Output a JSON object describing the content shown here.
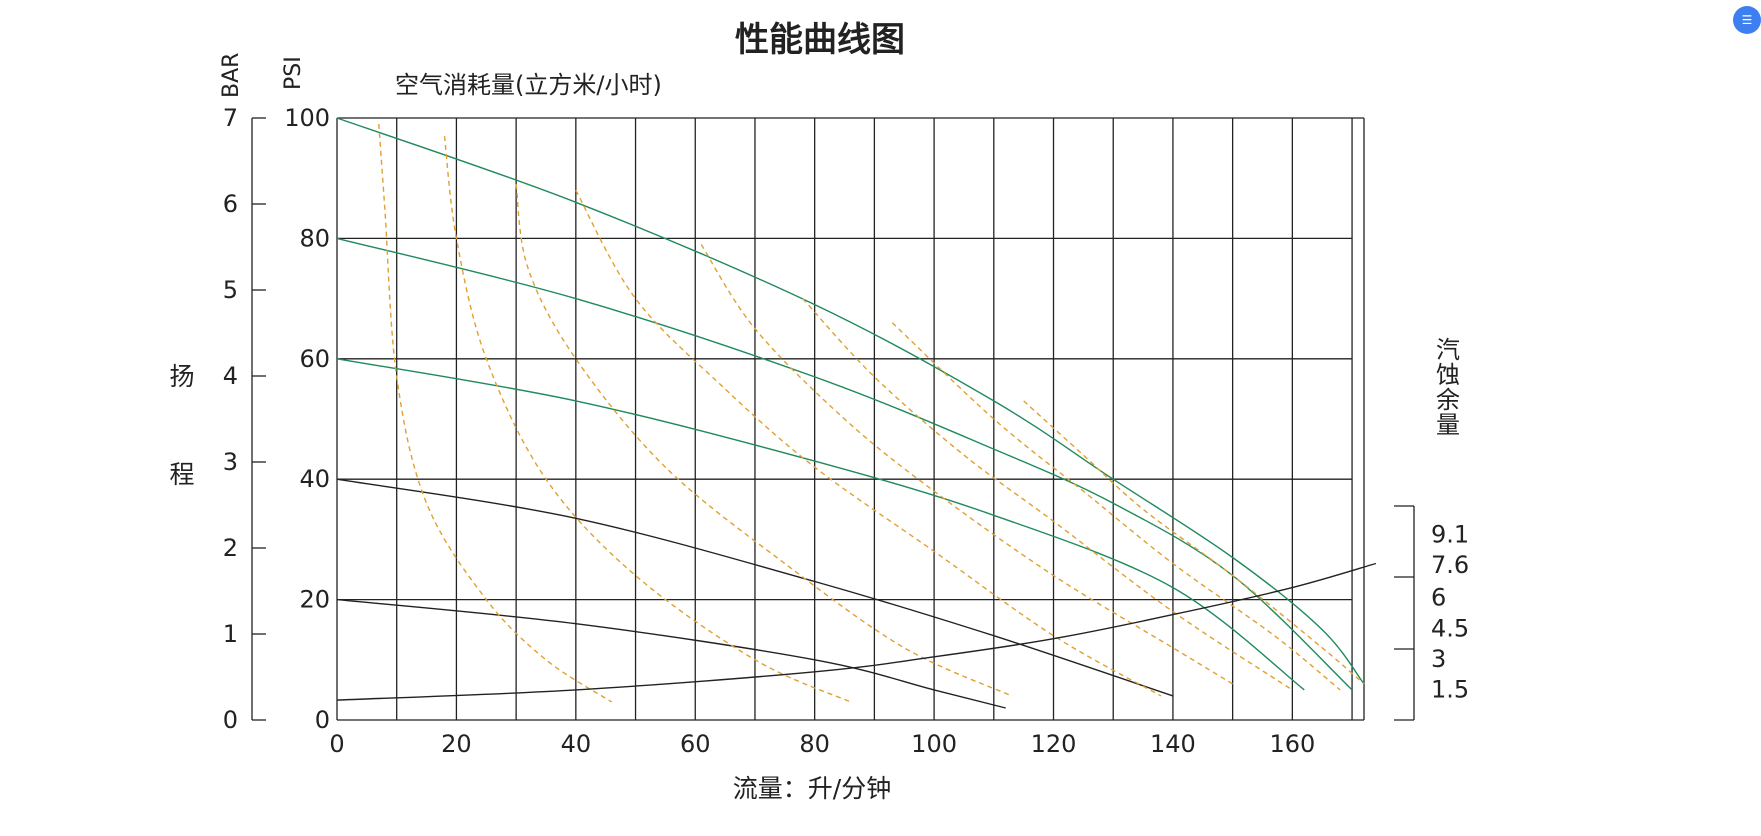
{
  "chart_data": {
    "type": "line",
    "title": "性能曲线图",
    "xlabel": "流量：升/分钟",
    "xlim": [
      0,
      172
    ],
    "x_ticks": [
      0,
      20,
      40,
      60,
      80,
      100,
      120,
      140,
      160
    ],
    "ylim": [
      0,
      100
    ],
    "y_axis_psi": {
      "label": "PSI",
      "ticks": [
        0,
        20,
        40,
        60,
        80,
        100
      ]
    },
    "y_axis_bar": {
      "label": "BAR",
      "ticks": [
        0,
        1,
        2,
        3,
        4,
        5,
        6,
        7
      ]
    },
    "head_label_top": "扬",
    "head_label_bottom": "程",
    "air_consumption_label": "空气消耗量(立方米/小时)",
    "npsh_axis": {
      "label": "汽蚀余量",
      "range": [
        0,
        10.5
      ],
      "ticks": [
        1.5,
        3,
        4.5,
        6,
        7.6,
        9.1
      ]
    },
    "grid": true,
    "series": [
      {
        "group": "pressure",
        "color": "#1f8a5c",
        "x": [
          0,
          40,
          80,
          110,
          130,
          150,
          165,
          172
        ],
        "y": [
          100,
          86,
          69,
          53,
          40,
          27,
          15,
          6
        ]
      },
      {
        "group": "pressure",
        "color": "#1f8a5c",
        "x": [
          0,
          40,
          80,
          110,
          130,
          150,
          170
        ],
        "y": [
          80,
          70,
          57,
          45,
          36,
          24,
          5
        ]
      },
      {
        "group": "pressure",
        "color": "#1f8a5c",
        "x": [
          0,
          40,
          80,
          110,
          140,
          162
        ],
        "y": [
          60,
          53,
          43,
          34,
          22,
          5
        ]
      },
      {
        "group": "pressure",
        "color": "#222222",
        "x": [
          0,
          40,
          80,
          110,
          140
        ],
        "y": [
          40,
          33.5,
          23,
          14,
          4
        ]
      },
      {
        "group": "pressure",
        "color": "#222222",
        "x": [
          0,
          40,
          80,
          100,
          112
        ],
        "y": [
          20,
          16,
          10,
          5,
          2
        ]
      },
      {
        "group": "air",
        "color": "#e0a030",
        "x": [
          7,
          8,
          10,
          15,
          25,
          35,
          46
        ],
        "y": [
          99,
          85,
          57,
          36,
          20,
          10,
          3
        ]
      },
      {
        "group": "air",
        "color": "#e0a030",
        "x": [
          18,
          20,
          25,
          35,
          50,
          70,
          86
        ],
        "y": [
          97,
          80,
          60,
          40,
          24,
          10,
          3
        ]
      },
      {
        "group": "air",
        "color": "#e0a030",
        "x": [
          30,
          32,
          40,
          55,
          75,
          95,
          113
        ],
        "y": [
          89,
          75,
          60,
          42,
          26,
          12,
          4
        ]
      },
      {
        "group": "air",
        "color": "#e0a030",
        "x": [
          40,
          50,
          65,
          80,
          100,
          120,
          138
        ],
        "y": [
          88,
          70,
          55,
          42,
          28,
          14,
          4
        ]
      },
      {
        "group": "air",
        "color": "#e0a030",
        "x": [
          61,
          70,
          85,
          100,
          120,
          140,
          150
        ],
        "y": [
          79,
          65,
          50,
          38,
          24,
          12,
          6
        ]
      },
      {
        "group": "air",
        "color": "#e0a030",
        "x": [
          78,
          90,
          105,
          120,
          140,
          160
        ],
        "y": [
          70,
          57,
          44,
          33,
          18,
          5
        ]
      },
      {
        "group": "air",
        "color": "#e0a030",
        "x": [
          93,
          110,
          125,
          140,
          157,
          168
        ],
        "y": [
          66,
          50,
          38,
          26,
          14,
          5
        ]
      },
      {
        "group": "air",
        "color": "#e0a030",
        "x": [
          115,
          125,
          135,
          150,
          165,
          172
        ],
        "y": [
          53,
          44,
          35,
          24,
          12,
          6
        ]
      },
      {
        "group": "npsh",
        "color": "#222222",
        "x": [
          0,
          40,
          80,
          100,
          120,
          140,
          160,
          174
        ],
        "y": [
          3.3,
          5,
          8,
          10.5,
          13.5,
          17.5,
          22,
          26
        ]
      }
    ]
  },
  "ui": {
    "corner_icon": "chat-icon"
  }
}
